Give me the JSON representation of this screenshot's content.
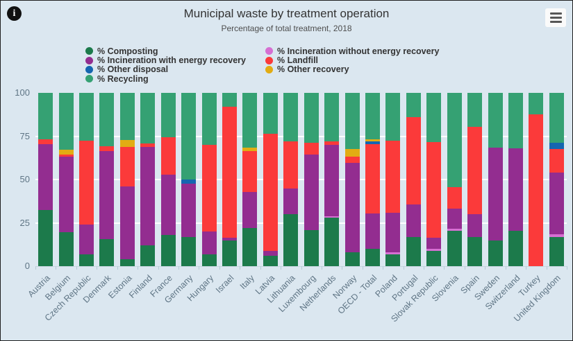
{
  "header": {
    "info_glyph": "i"
  },
  "colors": {
    "composting": "#1c7a4b",
    "incineration_without": "#d66fd2",
    "incineration_with": "#932d90",
    "landfill": "#fb3a3a",
    "other_disposal": "#1566b0",
    "other_recovery": "#e2ac13",
    "recycling": "#35a173",
    "background": "#dbe7f0",
    "grid": "#ffffff",
    "axis_text": "#5f7585"
  },
  "chart_data": {
    "type": "bar",
    "stacked": true,
    "title": "Municipal waste by treatment operation",
    "subtitle": "Percentage of total treatment, 2018",
    "ylim": [
      0,
      100
    ],
    "yticks": [
      0,
      25,
      50,
      75,
      100
    ],
    "grid": true,
    "legend_position": "top",
    "categories": [
      "Austria",
      "Belgium",
      "Czech Republic",
      "Denmark",
      "Estonia",
      "Finland",
      "France",
      "Germany",
      "Hungary",
      "Israel",
      "Italy",
      "Latvia",
      "Lithuania",
      "Luxembourg",
      "Netherlands",
      "Norway",
      "OECD - Total",
      "Poland",
      "Portugal",
      "Slovak Republic",
      "Slovenia",
      "Spain",
      "Sweden",
      "Switzerland",
      "Turkey",
      "United Kingdom"
    ],
    "series": [
      {
        "name": "% Composting",
        "key": "composting",
        "values": [
          32.5,
          19.5,
          7,
          15.5,
          4,
          12,
          18,
          17,
          7,
          15,
          22,
          6,
          30,
          21,
          28,
          8,
          10,
          7,
          17,
          9,
          20.5,
          17,
          15,
          20.5,
          0,
          17
        ]
      },
      {
        "name": "% Incineration without energy recovery",
        "key": "incineration_without",
        "values": [
          0,
          0,
          0,
          0,
          0,
          0,
          0,
          0,
          0,
          0,
          0,
          0,
          0,
          0,
          1,
          0,
          0,
          1,
          0,
          1,
          1,
          0,
          0,
          0,
          0,
          1.5
        ]
      },
      {
        "name": "% Incineration with energy recovery",
        "key": "incineration_with",
        "values": [
          38,
          43.5,
          17,
          51,
          42,
          57,
          35,
          30.5,
          13,
          1.5,
          21,
          3,
          15,
          43.5,
          41,
          51.5,
          20.5,
          23,
          18.5,
          6.5,
          11.5,
          13,
          53.5,
          47.5,
          0,
          35.5
        ]
      },
      {
        "name": "% Landfill",
        "key": "landfill",
        "values": [
          2.5,
          1.5,
          48.5,
          2.5,
          23,
          2,
          21.5,
          0,
          50,
          75.5,
          23.5,
          67.5,
          27,
          6.5,
          2,
          3.5,
          40,
          41.5,
          50.5,
          55,
          12.5,
          50.5,
          0,
          0,
          87.5,
          13.5
        ]
      },
      {
        "name": "% Other disposal",
        "key": "other_disposal",
        "values": [
          0,
          0,
          0,
          0,
          0,
          0,
          0,
          2.5,
          0,
          0,
          0,
          0,
          0,
          0,
          0,
          0,
          1.5,
          0,
          0,
          0,
          0,
          0,
          0,
          0,
          0,
          3.5
        ]
      },
      {
        "name": "% Other recovery",
        "key": "other_recovery",
        "values": [
          0,
          2.5,
          0,
          0,
          4,
          0,
          0,
          0,
          0,
          0,
          2,
          0,
          0,
          0,
          0,
          4.5,
          1,
          0,
          0,
          0,
          0,
          0,
          0,
          0,
          0,
          0
        ]
      },
      {
        "name": "% Recycling",
        "key": "recycling",
        "values": [
          27,
          33,
          27.5,
          31,
          27,
          29,
          25.5,
          50,
          30,
          8,
          31.5,
          23.5,
          28,
          29,
          28,
          32.5,
          27,
          27.5,
          14,
          28.5,
          54.5,
          19.5,
          31.5,
          32,
          12.5,
          29
        ]
      }
    ],
    "legend_columns": [
      [
        {
          "label": "% Composting",
          "key": "composting"
        },
        {
          "label": "% Incineration with energy recovery",
          "key": "incineration_with"
        },
        {
          "label": "% Other disposal",
          "key": "other_disposal"
        },
        {
          "label": "% Recycling",
          "key": "recycling"
        }
      ],
      [
        {
          "label": "% Incineration without energy recovery",
          "key": "incineration_without"
        },
        {
          "label": "% Landfill",
          "key": "landfill"
        },
        {
          "label": "% Other recovery",
          "key": "other_recovery"
        }
      ]
    ]
  }
}
